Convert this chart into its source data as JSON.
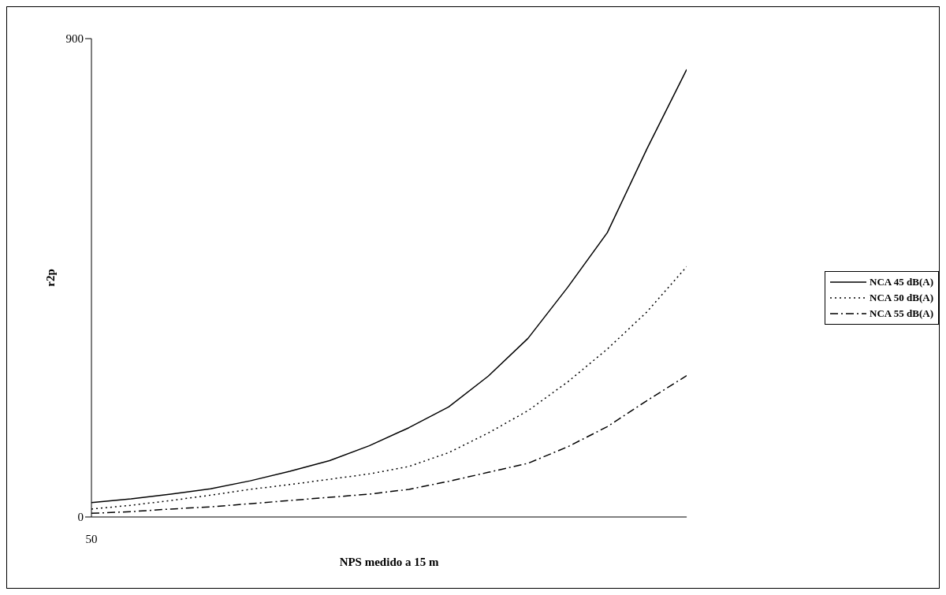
{
  "chart_data": {
    "type": "line",
    "xlabel": "NPS medido a 15 m",
    "ylabel": "r2p",
    "categories": [
      "50",
      null,
      null,
      null,
      null,
      null,
      null,
      null,
      null,
      null,
      null,
      null,
      null,
      null,
      null,
      null
    ],
    "ylim": [
      0,
      900
    ],
    "yticks": [
      0,
      900
    ],
    "grid": false,
    "legend": "right",
    "marker": "none",
    "series": [
      {
        "name": "NCA 45 dB(A)",
        "color": "#000000",
        "line_style": "solid",
        "values": [
          27,
          34,
          43,
          53,
          68,
          86,
          106,
          134,
          168,
          207,
          265,
          336,
          432,
          535,
          693,
          842
        ]
      },
      {
        "name": "NCA 50 dB(A)",
        "color": "#000000",
        "line_style": "dotted",
        "values": [
          15,
          22,
          31,
          41,
          52,
          61,
          71,
          81,
          95,
          121,
          158,
          200,
          254,
          316,
          386,
          471
        ]
      },
      {
        "name": "NCA 55 dB(A)",
        "color": "#000000",
        "line_style": "dashdot",
        "values": [
          7,
          10,
          15,
          19,
          25,
          31,
          37,
          43,
          52,
          67,
          84,
          101,
          132,
          170,
          219,
          266
        ]
      }
    ]
  }
}
